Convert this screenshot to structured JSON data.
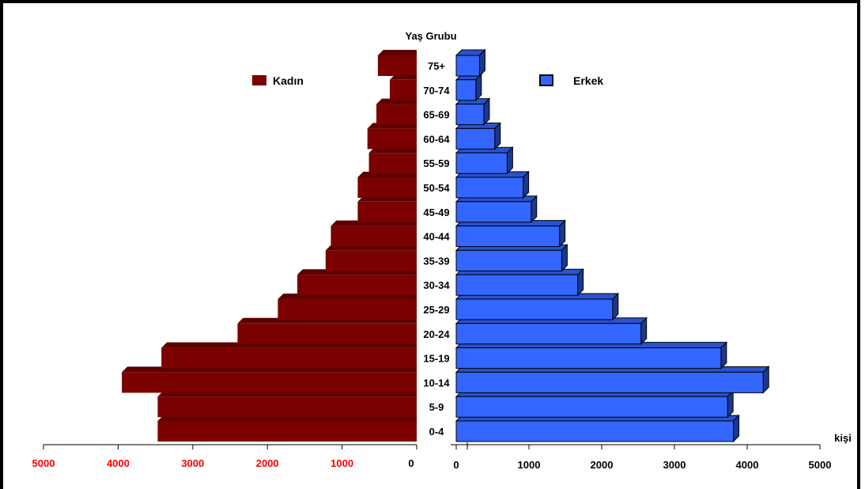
{
  "chart_data": {
    "type": "bar",
    "subtype": "population-pyramid",
    "center_label": "Yaş Grubu",
    "unit_label": "kişi",
    "categories": [
      "0-4",
      "5-9",
      "10-14",
      "15-19",
      "20-24",
      "25-29",
      "30-34",
      "35-39",
      "40-44",
      "45-49",
      "50-54",
      "55-59",
      "60-64",
      "65-69",
      "70-74",
      "75+"
    ],
    "series": [
      {
        "name": "Kadın",
        "side": "left",
        "color": "#7B0000",
        "values": [
          3470,
          3470,
          3950,
          3420,
          2400,
          1860,
          1600,
          1220,
          1150,
          790,
          790,
          640,
          660,
          540,
          360,
          520
        ]
      },
      {
        "name": "Erkek",
        "side": "right",
        "color": "#3366FF",
        "values": [
          3810,
          3730,
          4220,
          3640,
          2540,
          2150,
          1670,
          1450,
          1420,
          1030,
          920,
          700,
          530,
          380,
          270,
          320
        ]
      }
    ],
    "left_axis": {
      "ticks": [
        5000,
        4000,
        3000,
        2000,
        1000,
        0
      ],
      "tick_color": "#FF0000",
      "zero_color": "#000000"
    },
    "right_axis": {
      "ticks": [
        0,
        1000,
        2000,
        3000,
        4000,
        5000
      ],
      "tick_color": "#000000"
    },
    "xlim": [
      0,
      5000
    ],
    "legend": [
      {
        "label": "Kadın",
        "color": "#7B0000",
        "placement": "top-left"
      },
      {
        "label": "Erkek",
        "color": "#3366FF",
        "placement": "top-right"
      }
    ]
  }
}
